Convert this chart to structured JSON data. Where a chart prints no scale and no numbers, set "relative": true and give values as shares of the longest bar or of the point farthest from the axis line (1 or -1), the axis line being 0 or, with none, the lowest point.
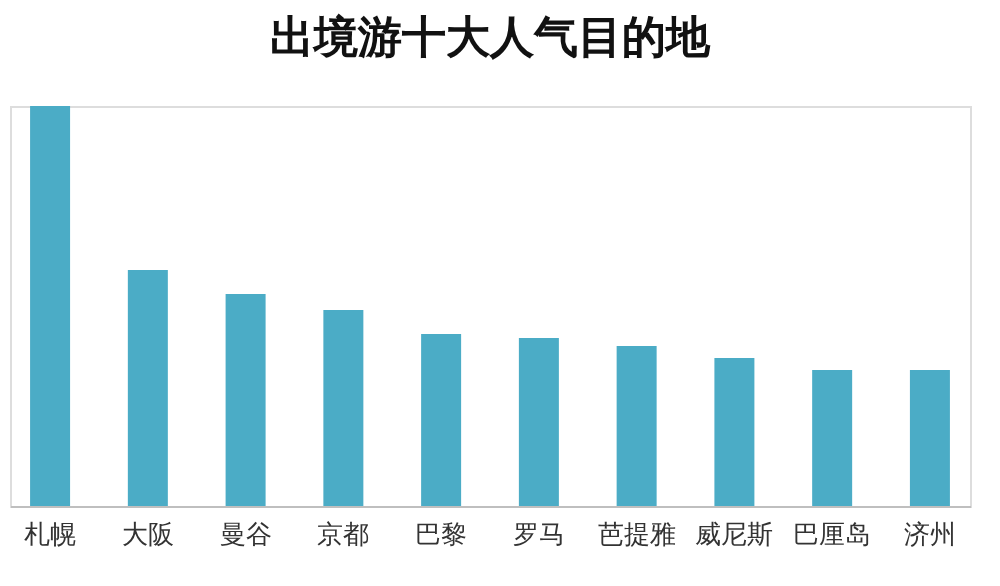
{
  "chart_data": {
    "type": "bar",
    "title": "出境游十大人气目的地",
    "categories": [
      "札幌",
      "大阪",
      "曼谷",
      "京都",
      "巴黎",
      "罗马",
      "芭提雅",
      "威尼斯",
      "巴厘岛",
      "济州"
    ],
    "values": [
      1,
      0.59,
      0.53,
      0.49,
      0.43,
      0.42,
      0.4,
      0.37,
      0.34,
      0.34
    ],
    "color": "#4bacc6",
    "relative": true
  }
}
